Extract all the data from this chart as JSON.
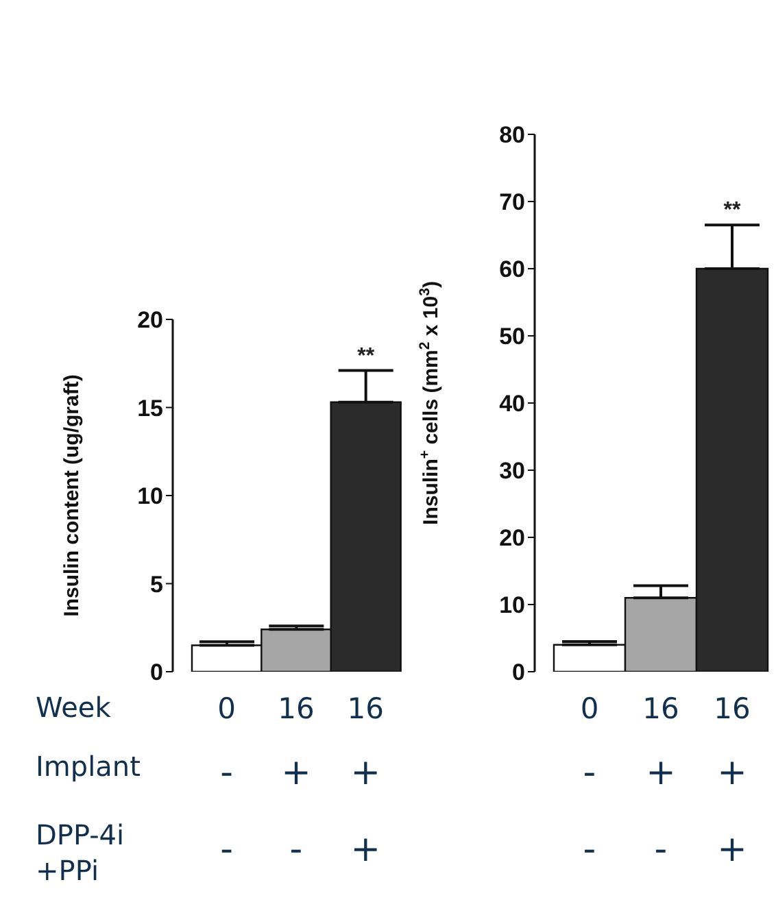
{
  "chart_data": [
    {
      "type": "bar",
      "ylabel": "Insulin content (ug/graft)",
      "categories": [
        "0",
        "16",
        "16"
      ],
      "values": [
        1.5,
        2.4,
        15.3
      ],
      "colors": [
        "#ffffff",
        "#a6a6a6",
        "#2b2b2b"
      ],
      "errors": [
        [
          1.5,
          1.7
        ],
        [
          2.4,
          2.6
        ],
        [
          15.3,
          17.1
        ]
      ],
      "ylim": [
        0,
        20
      ],
      "yticks": [
        0,
        5,
        10,
        15,
        20
      ],
      "grid": false,
      "legend": false,
      "annotations": [
        "**",
        "Week",
        "Implant",
        "DPP-4i +PPi",
        "-",
        "+",
        "+",
        "-",
        "-",
        "+"
      ]
    },
    {
      "type": "bar",
      "ylabel": "Insulin$^{+}$ cells (mm$^{2}$ x 10$^{3}$)",
      "categories": [
        "0",
        "16",
        "16"
      ],
      "values": [
        4,
        11,
        60
      ],
      "colors": [
        "#ffffff",
        "#a6a6a6",
        "#2b2b2b"
      ],
      "errors": [
        [
          4,
          4.5
        ],
        [
          11,
          12.8
        ],
        [
          60,
          66.5
        ]
      ],
      "ylim": [
        0,
        80
      ],
      "yticks": [
        0,
        10,
        20,
        30,
        40,
        50,
        60,
        70,
        80
      ],
      "grid": false,
      "legend": false,
      "annotations": [
        "**",
        "-",
        "+",
        "+",
        "-",
        "-",
        "+"
      ]
    }
  ]
}
